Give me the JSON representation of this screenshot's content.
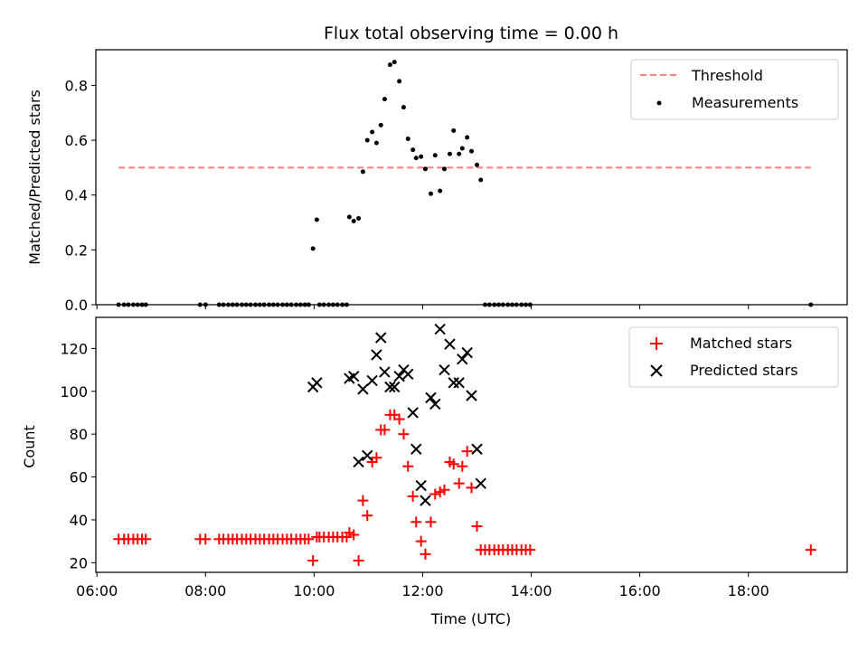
{
  "chart_data": [
    {
      "type": "scatter",
      "title": "Flux total observing time = 0.00 h",
      "xlabel": "",
      "ylabel": "Matched/Predicted stars",
      "xlim_hours": [
        5.98,
        19.82
      ],
      "ylim": [
        0.0,
        0.93
      ],
      "yticks": [
        0.0,
        0.2,
        0.4,
        0.6,
        0.8
      ],
      "yticklabels": [
        "0.0",
        "0.2",
        "0.4",
        "0.6",
        "0.8"
      ],
      "legend_position": "top-right",
      "threshold": {
        "name": "Threshold",
        "value": 0.5,
        "x_range": [
          6.4,
          19.15
        ],
        "color": "#ff7f7f"
      },
      "series": [
        {
          "name": "Measurements",
          "color": "#000000",
          "points": [
            [
              6.4,
              0
            ],
            [
              6.5,
              0
            ],
            [
              6.58,
              0
            ],
            [
              6.67,
              0
            ],
            [
              6.75,
              0
            ],
            [
              6.83,
              0
            ],
            [
              6.9,
              0
            ],
            [
              7.9,
              0
            ],
            [
              8.0,
              0
            ],
            [
              8.25,
              0
            ],
            [
              8.33,
              0
            ],
            [
              8.42,
              0
            ],
            [
              8.5,
              0
            ],
            [
              8.58,
              0
            ],
            [
              8.67,
              0
            ],
            [
              8.75,
              0
            ],
            [
              8.83,
              0
            ],
            [
              8.92,
              0
            ],
            [
              9.0,
              0
            ],
            [
              9.08,
              0
            ],
            [
              9.17,
              0
            ],
            [
              9.25,
              0
            ],
            [
              9.33,
              0
            ],
            [
              9.42,
              0
            ],
            [
              9.5,
              0
            ],
            [
              9.58,
              0
            ],
            [
              9.67,
              0
            ],
            [
              9.75,
              0
            ],
            [
              9.83,
              0
            ],
            [
              9.9,
              0
            ],
            [
              9.98,
              0.205
            ],
            [
              10.05,
              0.31
            ],
            [
              10.1,
              0
            ],
            [
              10.18,
              0
            ],
            [
              10.27,
              0
            ],
            [
              10.35,
              0
            ],
            [
              10.43,
              0
            ],
            [
              10.52,
              0
            ],
            [
              10.6,
              0
            ],
            [
              10.65,
              0.32
            ],
            [
              10.73,
              0.305
            ],
            [
              10.82,
              0.315
            ],
            [
              10.9,
              0.485
            ],
            [
              10.98,
              0.6
            ],
            [
              11.07,
              0.63
            ],
            [
              11.15,
              0.59
            ],
            [
              11.23,
              0.655
            ],
            [
              11.3,
              0.75
            ],
            [
              11.4,
              0.875
            ],
            [
              11.48,
              0.885
            ],
            [
              11.57,
              0.815
            ],
            [
              11.65,
              0.72
            ],
            [
              11.73,
              0.605
            ],
            [
              11.82,
              0.565
            ],
            [
              11.88,
              0.535
            ],
            [
              11.97,
              0.54
            ],
            [
              12.05,
              0.495
            ],
            [
              12.15,
              0.405
            ],
            [
              12.23,
              0.545
            ],
            [
              12.32,
              0.415
            ],
            [
              12.4,
              0.495
            ],
            [
              12.5,
              0.55
            ],
            [
              12.57,
              0.635
            ],
            [
              12.67,
              0.55
            ],
            [
              12.73,
              0.57
            ],
            [
              12.82,
              0.61
            ],
            [
              12.9,
              0.56
            ],
            [
              13.0,
              0.51
            ],
            [
              13.07,
              0.455
            ],
            [
              13.15,
              0
            ],
            [
              13.23,
              0
            ],
            [
              13.32,
              0
            ],
            [
              13.4,
              0
            ],
            [
              13.48,
              0
            ],
            [
              13.57,
              0
            ],
            [
              13.65,
              0
            ],
            [
              13.73,
              0
            ],
            [
              13.82,
              0
            ],
            [
              13.9,
              0
            ],
            [
              13.98,
              0
            ],
            [
              19.15,
              0
            ]
          ]
        }
      ]
    },
    {
      "type": "scatter",
      "title": "",
      "xlabel": "Time (UTC)",
      "ylabel": "Count",
      "xlim_hours": [
        5.98,
        19.82
      ],
      "ylim": [
        15.5,
        134.5
      ],
      "yticks": [
        20,
        40,
        60,
        80,
        100,
        120
      ],
      "yticklabels": [
        "20",
        "40",
        "60",
        "80",
        "100",
        "120"
      ],
      "xticks": [
        6,
        8,
        10,
        12,
        14,
        16,
        18
      ],
      "xticklabels": [
        "06:00",
        "08:00",
        "10:00",
        "12:00",
        "14:00",
        "16:00",
        "18:00"
      ],
      "legend_position": "top-right",
      "series": [
        {
          "name": "Matched stars",
          "marker": "plus",
          "color": "#ff0000",
          "points": [
            [
              6.4,
              31
            ],
            [
              6.5,
              31
            ],
            [
              6.58,
              31
            ],
            [
              6.67,
              31
            ],
            [
              6.75,
              31
            ],
            [
              6.83,
              31
            ],
            [
              6.9,
              31
            ],
            [
              7.9,
              31
            ],
            [
              8.0,
              31
            ],
            [
              8.25,
              31
            ],
            [
              8.33,
              31
            ],
            [
              8.42,
              31
            ],
            [
              8.5,
              31
            ],
            [
              8.58,
              31
            ],
            [
              8.67,
              31
            ],
            [
              8.75,
              31
            ],
            [
              8.83,
              31
            ],
            [
              8.92,
              31
            ],
            [
              9.0,
              31
            ],
            [
              9.08,
              31
            ],
            [
              9.17,
              31
            ],
            [
              9.25,
              31
            ],
            [
              9.33,
              31
            ],
            [
              9.42,
              31
            ],
            [
              9.5,
              31
            ],
            [
              9.58,
              31
            ],
            [
              9.67,
              31
            ],
            [
              9.75,
              31
            ],
            [
              9.83,
              31
            ],
            [
              9.9,
              31
            ],
            [
              9.98,
              21
            ],
            [
              10.05,
              32
            ],
            [
              10.1,
              32
            ],
            [
              10.18,
              32
            ],
            [
              10.27,
              32
            ],
            [
              10.35,
              32
            ],
            [
              10.43,
              32
            ],
            [
              10.52,
              32
            ],
            [
              10.6,
              32
            ],
            [
              10.65,
              34
            ],
            [
              10.73,
              33
            ],
            [
              10.82,
              21
            ],
            [
              10.9,
              49
            ],
            [
              10.98,
              42
            ],
            [
              11.07,
              67
            ],
            [
              11.15,
              69
            ],
            [
              11.23,
              82
            ],
            [
              11.3,
              82
            ],
            [
              11.4,
              89
            ],
            [
              11.48,
              89
            ],
            [
              11.57,
              87
            ],
            [
              11.65,
              80
            ],
            [
              11.73,
              65
            ],
            [
              11.82,
              51
            ],
            [
              11.88,
              39
            ],
            [
              11.97,
              30
            ],
            [
              12.05,
              24
            ],
            [
              12.15,
              39
            ],
            [
              12.23,
              52
            ],
            [
              12.32,
              53
            ],
            [
              12.4,
              54
            ],
            [
              12.5,
              67
            ],
            [
              12.57,
              66
            ],
            [
              12.67,
              57
            ],
            [
              12.73,
              65
            ],
            [
              12.82,
              72
            ],
            [
              12.9,
              55
            ],
            [
              13.0,
              37
            ],
            [
              13.07,
              26
            ],
            [
              13.15,
              26
            ],
            [
              13.23,
              26
            ],
            [
              13.32,
              26
            ],
            [
              13.4,
              26
            ],
            [
              13.48,
              26
            ],
            [
              13.57,
              26
            ],
            [
              13.65,
              26
            ],
            [
              13.73,
              26
            ],
            [
              13.82,
              26
            ],
            [
              13.9,
              26
            ],
            [
              13.98,
              26
            ],
            [
              19.15,
              26
            ]
          ]
        },
        {
          "name": "Predicted stars",
          "marker": "x",
          "color": "#000000",
          "points": [
            [
              9.98,
              102
            ],
            [
              10.05,
              104
            ],
            [
              10.65,
              106
            ],
            [
              10.73,
              107
            ],
            [
              10.82,
              67
            ],
            [
              10.9,
              101
            ],
            [
              10.98,
              70
            ],
            [
              11.07,
              105
            ],
            [
              11.15,
              117
            ],
            [
              11.23,
              125
            ],
            [
              11.3,
              109
            ],
            [
              11.4,
              102
            ],
            [
              11.48,
              102
            ],
            [
              11.57,
              107
            ],
            [
              11.65,
              110
            ],
            [
              11.73,
              108
            ],
            [
              11.82,
              90
            ],
            [
              11.88,
              73
            ],
            [
              11.97,
              56
            ],
            [
              12.05,
              49
            ],
            [
              12.15,
              97
            ],
            [
              12.23,
              94
            ],
            [
              12.32,
              129
            ],
            [
              12.4,
              110
            ],
            [
              12.5,
              122
            ],
            [
              12.57,
              104
            ],
            [
              12.67,
              104
            ],
            [
              12.73,
              115
            ],
            [
              12.82,
              118
            ],
            [
              12.9,
              98
            ],
            [
              13.0,
              73
            ],
            [
              13.07,
              57
            ]
          ]
        }
      ]
    }
  ]
}
